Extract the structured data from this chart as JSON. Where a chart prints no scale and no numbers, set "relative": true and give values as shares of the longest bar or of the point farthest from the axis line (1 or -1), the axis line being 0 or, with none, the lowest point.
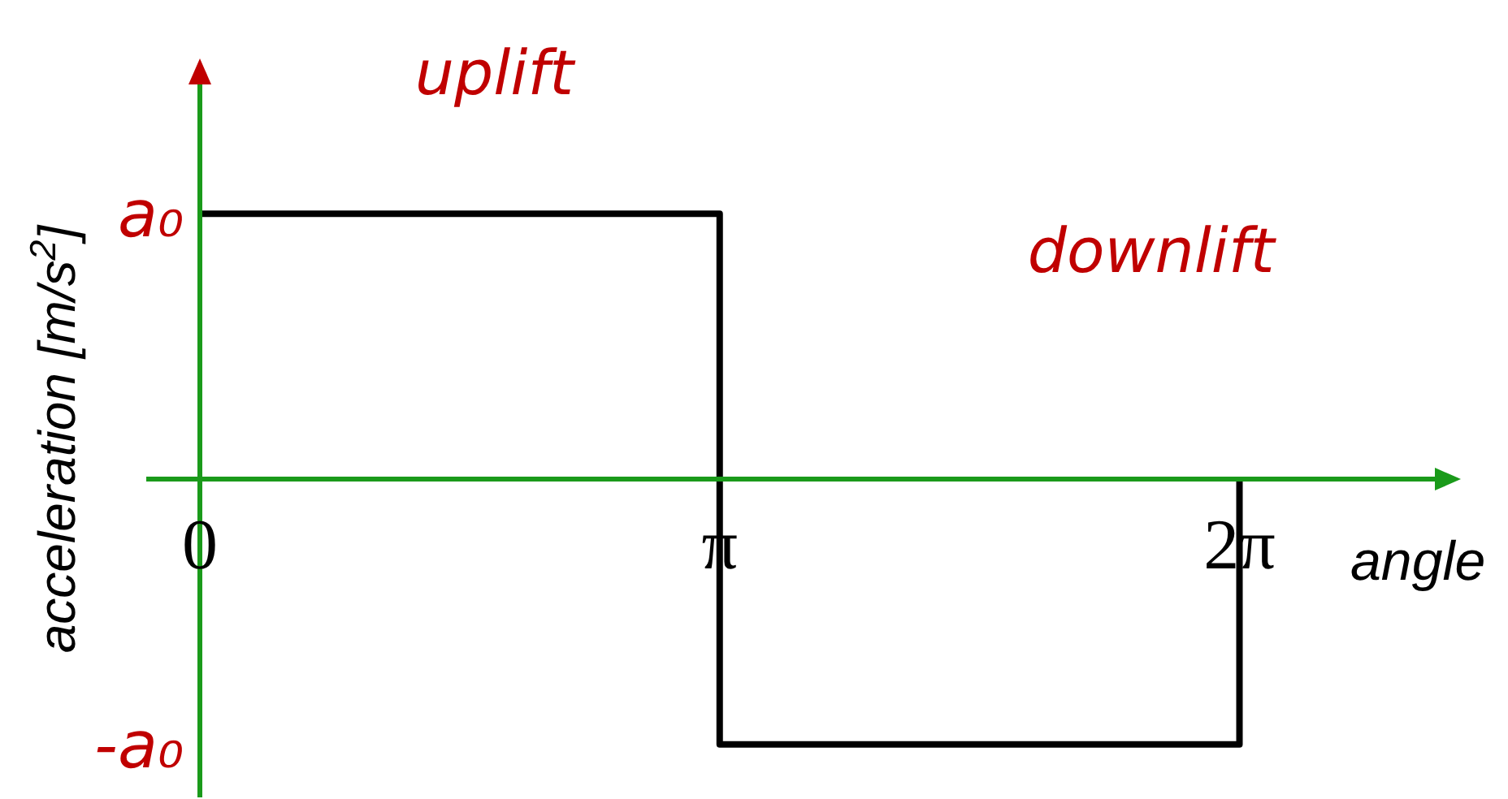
{
  "chart_data": {
    "type": "step",
    "xlabel": "angle",
    "ylabel": "acceleration [m/s$^{2}$]",
    "x": [
      0,
      3.14,
      6.28
    ],
    "values": [
      1,
      -1,
      0
    ],
    "color": "#000000",
    "relative": true,
    "xlim": [
      0,
      7.48
    ],
    "xticks": [
      0,
      {
        "value": 3.14,
        "label": "π"
      },
      {
        "value": 6.28,
        "label": "2π"
      }
    ],
    "annotations": [
      "uplift",
      "downlift",
      "a₀",
      "-a₀"
    ],
    "grid": false,
    "legend": false,
    "marker": "none"
  }
}
